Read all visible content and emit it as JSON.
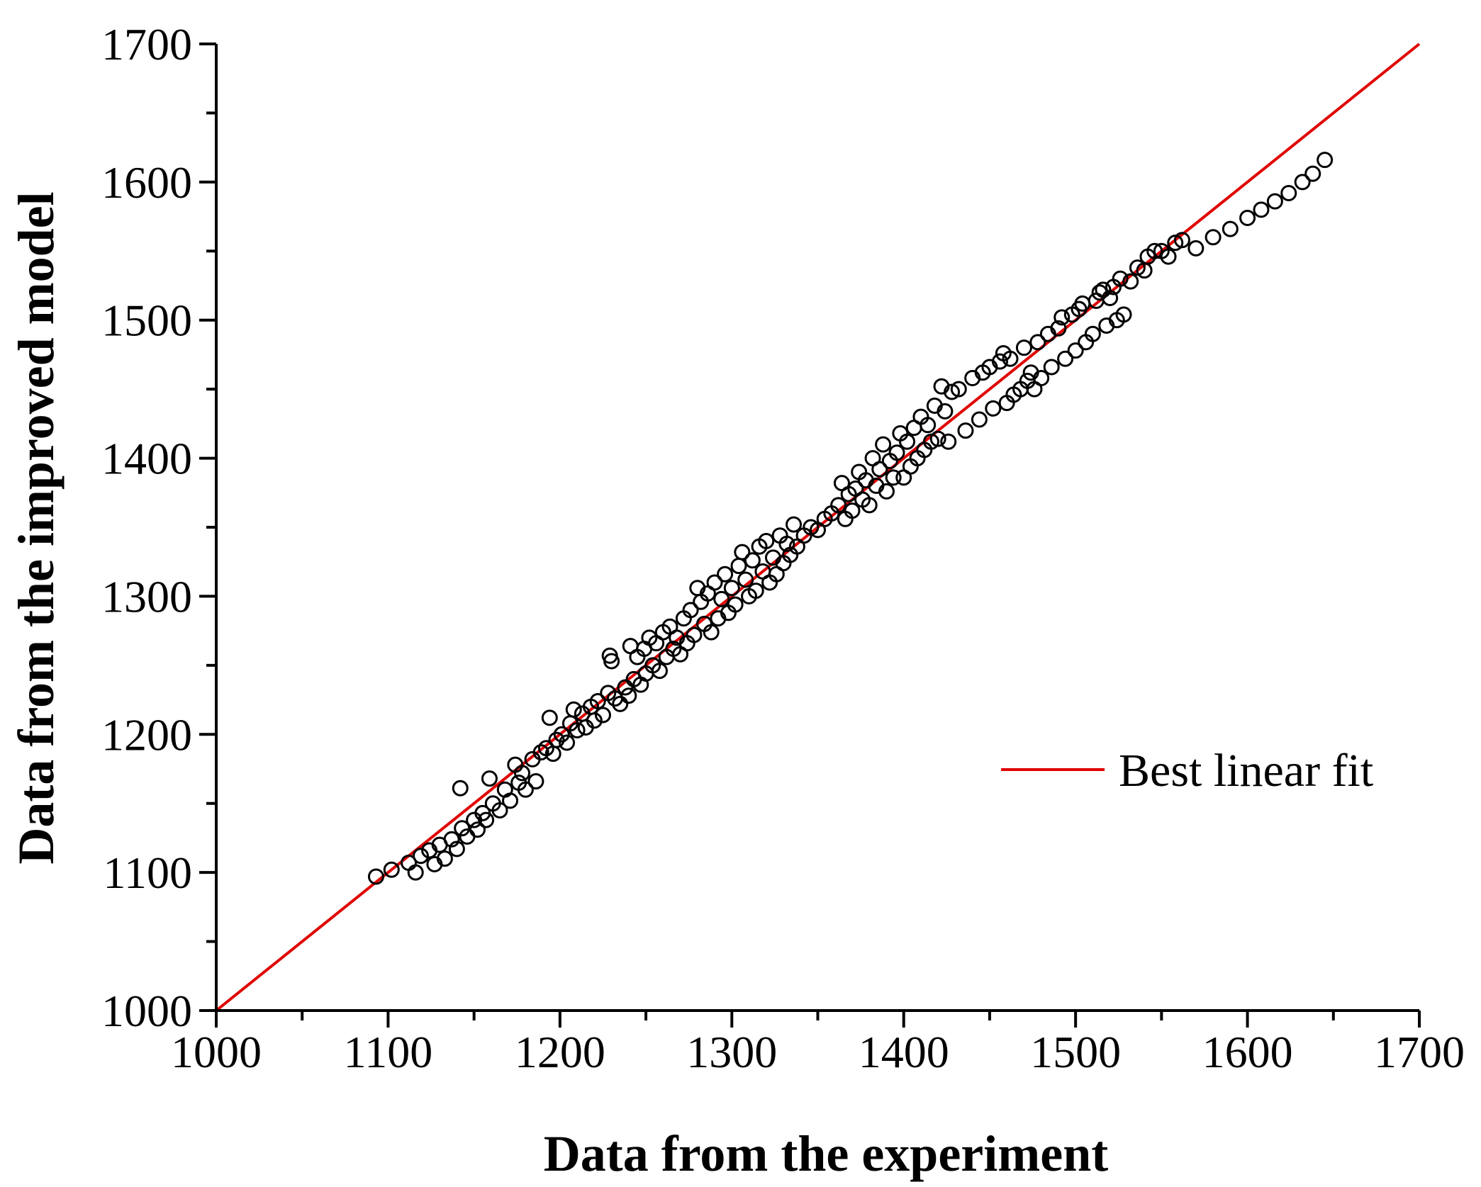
{
  "chart_data": {
    "type": "scatter",
    "title": "",
    "xlabel": "Data from the experiment",
    "ylabel": "Data from the improved model",
    "xlim": [
      1000,
      1700
    ],
    "ylim": [
      1000,
      1700
    ],
    "xticks": [
      "1000",
      "1100",
      "1200",
      "1300",
      "1400",
      "1500",
      "1600",
      "1700"
    ],
    "yticks": [
      "1000",
      "1100",
      "1200",
      "1300",
      "1400",
      "1500",
      "1600",
      "1700"
    ],
    "minor_tick_step": 50,
    "legend": {
      "position": "right-middle",
      "entries": [
        {
          "label": "Best linear fit",
          "type": "line"
        }
      ]
    },
    "fit_line": {
      "name": "Best linear fit",
      "color": "#e00000",
      "x": [
        1000,
        1700
      ],
      "y": [
        1000,
        1700
      ]
    },
    "series": [
      {
        "name": "data",
        "marker": "open-circle",
        "points": [
          [
            1093,
            1097
          ],
          [
            1102,
            1102
          ],
          [
            1112,
            1107
          ],
          [
            1116,
            1100
          ],
          [
            1119,
            1112
          ],
          [
            1124,
            1116
          ],
          [
            1127,
            1106
          ],
          [
            1130,
            1120
          ],
          [
            1133,
            1110
          ],
          [
            1137,
            1124
          ],
          [
            1140,
            1117
          ],
          [
            1142,
            1161
          ],
          [
            1143,
            1132
          ],
          [
            1146,
            1126
          ],
          [
            1150,
            1138
          ],
          [
            1152,
            1131
          ],
          [
            1155,
            1143
          ],
          [
            1157,
            1138
          ],
          [
            1159,
            1168
          ],
          [
            1161,
            1150
          ],
          [
            1165,
            1145
          ],
          [
            1168,
            1160
          ],
          [
            1171,
            1152
          ],
          [
            1174,
            1178
          ],
          [
            1176,
            1165
          ],
          [
            1178,
            1172
          ],
          [
            1180,
            1160
          ],
          [
            1184,
            1182
          ],
          [
            1186,
            1166
          ],
          [
            1189,
            1187
          ],
          [
            1192,
            1190
          ],
          [
            1194,
            1212
          ],
          [
            1196,
            1186
          ],
          [
            1198,
            1196
          ],
          [
            1201,
            1200
          ],
          [
            1204,
            1194
          ],
          [
            1206,
            1208
          ],
          [
            1208,
            1218
          ],
          [
            1210,
            1203
          ],
          [
            1213,
            1215
          ],
          [
            1215,
            1205
          ],
          [
            1218,
            1220
          ],
          [
            1220,
            1210
          ],
          [
            1222,
            1224
          ],
          [
            1225,
            1214
          ],
          [
            1228,
            1230
          ],
          [
            1229,
            1257
          ],
          [
            1230,
            1253
          ],
          [
            1232,
            1226
          ],
          [
            1235,
            1222
          ],
          [
            1238,
            1234
          ],
          [
            1240,
            1228
          ],
          [
            1241,
            1264
          ],
          [
            1243,
            1240
          ],
          [
            1245,
            1256
          ],
          [
            1247,
            1236
          ],
          [
            1249,
            1262
          ],
          [
            1250,
            1244
          ],
          [
            1252,
            1270
          ],
          [
            1254,
            1250
          ],
          [
            1256,
            1266
          ],
          [
            1258,
            1246
          ],
          [
            1260,
            1274
          ],
          [
            1262,
            1256
          ],
          [
            1264,
            1278
          ],
          [
            1266,
            1262
          ],
          [
            1268,
            1270
          ],
          [
            1270,
            1258
          ],
          [
            1272,
            1284
          ],
          [
            1274,
            1266
          ],
          [
            1276,
            1290
          ],
          [
            1278,
            1272
          ],
          [
            1280,
            1306
          ],
          [
            1282,
            1296
          ],
          [
            1284,
            1280
          ],
          [
            1286,
            1302
          ],
          [
            1288,
            1274
          ],
          [
            1290,
            1310
          ],
          [
            1292,
            1284
          ],
          [
            1294,
            1298
          ],
          [
            1296,
            1316
          ],
          [
            1298,
            1288
          ],
          [
            1300,
            1306
          ],
          [
            1302,
            1294
          ],
          [
            1304,
            1322
          ],
          [
            1306,
            1332
          ],
          [
            1308,
            1312
          ],
          [
            1310,
            1300
          ],
          [
            1312,
            1326
          ],
          [
            1314,
            1304
          ],
          [
            1316,
            1336
          ],
          [
            1318,
            1318
          ],
          [
            1320,
            1340
          ],
          [
            1322,
            1310
          ],
          [
            1324,
            1328
          ],
          [
            1326,
            1316
          ],
          [
            1328,
            1344
          ],
          [
            1330,
            1324
          ],
          [
            1332,
            1338
          ],
          [
            1334,
            1330
          ],
          [
            1336,
            1352
          ],
          [
            1338,
            1336
          ],
          [
            1342,
            1344
          ],
          [
            1346,
            1350
          ],
          [
            1350,
            1348
          ],
          [
            1354,
            1356
          ],
          [
            1358,
            1360
          ],
          [
            1362,
            1366
          ],
          [
            1364,
            1382
          ],
          [
            1366,
            1356
          ],
          [
            1368,
            1374
          ],
          [
            1370,
            1362
          ],
          [
            1372,
            1378
          ],
          [
            1374,
            1390
          ],
          [
            1376,
            1370
          ],
          [
            1378,
            1384
          ],
          [
            1380,
            1366
          ],
          [
            1382,
            1400
          ],
          [
            1384,
            1380
          ],
          [
            1386,
            1392
          ],
          [
            1388,
            1410
          ],
          [
            1390,
            1376
          ],
          [
            1392,
            1398
          ],
          [
            1394,
            1386
          ],
          [
            1396,
            1404
          ],
          [
            1398,
            1418
          ],
          [
            1400,
            1386
          ],
          [
            1402,
            1412
          ],
          [
            1404,
            1394
          ],
          [
            1406,
            1422
          ],
          [
            1408,
            1400
          ],
          [
            1410,
            1430
          ],
          [
            1412,
            1406
          ],
          [
            1414,
            1424
          ],
          [
            1416,
            1412
          ],
          [
            1418,
            1438
          ],
          [
            1420,
            1414
          ],
          [
            1422,
            1452
          ],
          [
            1424,
            1434
          ],
          [
            1426,
            1412
          ],
          [
            1428,
            1448
          ],
          [
            1432,
            1450
          ],
          [
            1436,
            1420
          ],
          [
            1440,
            1458
          ],
          [
            1444,
            1428
          ],
          [
            1446,
            1462
          ],
          [
            1450,
            1466
          ],
          [
            1452,
            1436
          ],
          [
            1456,
            1470
          ],
          [
            1458,
            1476
          ],
          [
            1460,
            1440
          ],
          [
            1462,
            1472
          ],
          [
            1464,
            1446
          ],
          [
            1468,
            1450
          ],
          [
            1470,
            1480
          ],
          [
            1472,
            1456
          ],
          [
            1474,
            1462
          ],
          [
            1476,
            1450
          ],
          [
            1478,
            1484
          ],
          [
            1480,
            1458
          ],
          [
            1484,
            1490
          ],
          [
            1486,
            1466
          ],
          [
            1490,
            1494
          ],
          [
            1492,
            1502
          ],
          [
            1494,
            1472
          ],
          [
            1498,
            1504
          ],
          [
            1500,
            1478
          ],
          [
            1502,
            1508
          ],
          [
            1504,
            1512
          ],
          [
            1506,
            1484
          ],
          [
            1510,
            1490
          ],
          [
            1512,
            1514
          ],
          [
            1514,
            1520
          ],
          [
            1516,
            1522
          ],
          [
            1518,
            1496
          ],
          [
            1520,
            1516
          ],
          [
            1522,
            1524
          ],
          [
            1524,
            1500
          ],
          [
            1526,
            1530
          ],
          [
            1528,
            1504
          ],
          [
            1532,
            1528
          ],
          [
            1536,
            1538
          ],
          [
            1540,
            1536
          ],
          [
            1542,
            1546
          ],
          [
            1546,
            1550
          ],
          [
            1550,
            1550
          ],
          [
            1554,
            1546
          ],
          [
            1558,
            1556
          ],
          [
            1562,
            1558
          ],
          [
            1570,
            1552
          ],
          [
            1580,
            1560
          ],
          [
            1590,
            1566
          ],
          [
            1600,
            1574
          ],
          [
            1608,
            1580
          ],
          [
            1616,
            1586
          ],
          [
            1624,
            1592
          ],
          [
            1632,
            1600
          ],
          [
            1638,
            1606
          ],
          [
            1645,
            1616
          ]
        ]
      }
    ]
  }
}
